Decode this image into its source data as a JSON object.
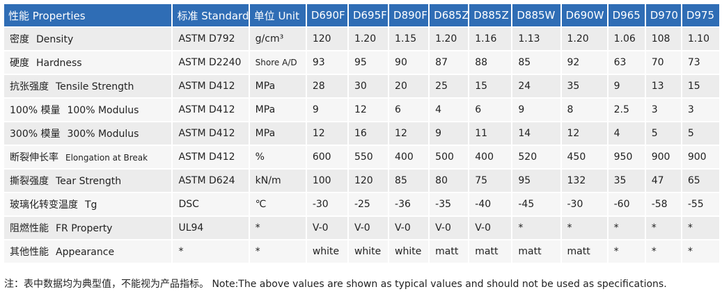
{
  "table": {
    "header": [
      "性能 Properties",
      "标准 Standard",
      "单位 Unit",
      "D690F",
      "D695F",
      "D890F",
      "D685Z",
      "D885Z",
      "D885W",
      "D690W",
      "D965",
      "D970",
      "D975"
    ],
    "rows": [
      {
        "zh": "密度",
        "en": "Density",
        "standard": "ASTM D792",
        "unit": "g/cm³",
        "values": [
          "120",
          "1.20",
          "1.15",
          "1.20",
          "1.16",
          "1.13",
          "1.20",
          "1.06",
          "108",
          "1.10"
        ]
      },
      {
        "zh": "硬度",
        "en": "Hardness",
        "standard": "ASTM D2240",
        "unit": "Shore A/D",
        "values": [
          "93",
          "95",
          "90",
          "87",
          "88",
          "85",
          "92",
          "63",
          "70",
          "73"
        ]
      },
      {
        "zh": "抗张强度",
        "en": "Tensile Strength",
        "standard": "ASTM D412",
        "unit": "MPa",
        "values": [
          "28",
          "30",
          "20",
          "25",
          "15",
          "24",
          "35",
          "9",
          "13",
          "15"
        ]
      },
      {
        "zh": "100% 模量",
        "en": "100% Modulus",
        "standard": "ASTM D412",
        "unit": "MPa",
        "values": [
          "9",
          "12",
          "6",
          "4",
          "6",
          "9",
          "8",
          "2.5",
          "3",
          "3"
        ]
      },
      {
        "zh": "300% 模量",
        "en": "300% Modulus",
        "standard": "ASTM D412",
        "unit": "MPa",
        "values": [
          "12",
          "16",
          "12",
          "9",
          "11",
          "14",
          "12",
          "4",
          "5",
          "5"
        ]
      },
      {
        "zh": "断裂伸长率",
        "en": "Elongation at Break",
        "standard": "ASTM D412",
        "unit": "%",
        "values": [
          "600",
          "550",
          "400",
          "500",
          "400",
          "520",
          "450",
          "950",
          "900",
          "900"
        ]
      },
      {
        "zh": "撕裂强度",
        "en": "Tear Strength",
        "standard": "ASTM D624",
        "unit": "kN/m",
        "values": [
          "100",
          "120",
          "85",
          "80",
          "75",
          "95",
          "132",
          "35",
          "47",
          "65"
        ]
      },
      {
        "zh": "玻璃化转变温度",
        "en": "Tg",
        "standard": "DSC",
        "unit": "℃",
        "values": [
          "-30",
          "-25",
          "-36",
          "-35",
          "-40",
          "-45",
          "-30",
          "-60",
          "-58",
          "-55"
        ]
      },
      {
        "zh": "阻燃性能",
        "en": "FR Property",
        "standard": "UL94",
        "unit": "*",
        "values": [
          "V-0",
          "V-0",
          "V-0",
          "V-0",
          "V-0",
          "*",
          "*",
          "*",
          "*",
          "*"
        ]
      },
      {
        "zh": "其他性能",
        "en": "Appearance",
        "standard": "*",
        "unit": "*",
        "values": [
          "white",
          "white",
          "white",
          "matt",
          "matt",
          "matt",
          "matt",
          "*",
          "*",
          "*"
        ]
      }
    ]
  },
  "note": "注：表中数据均为典型值，不能视为产品指标。 Note:The above values are shown as typical values and should not be used as specifications."
}
